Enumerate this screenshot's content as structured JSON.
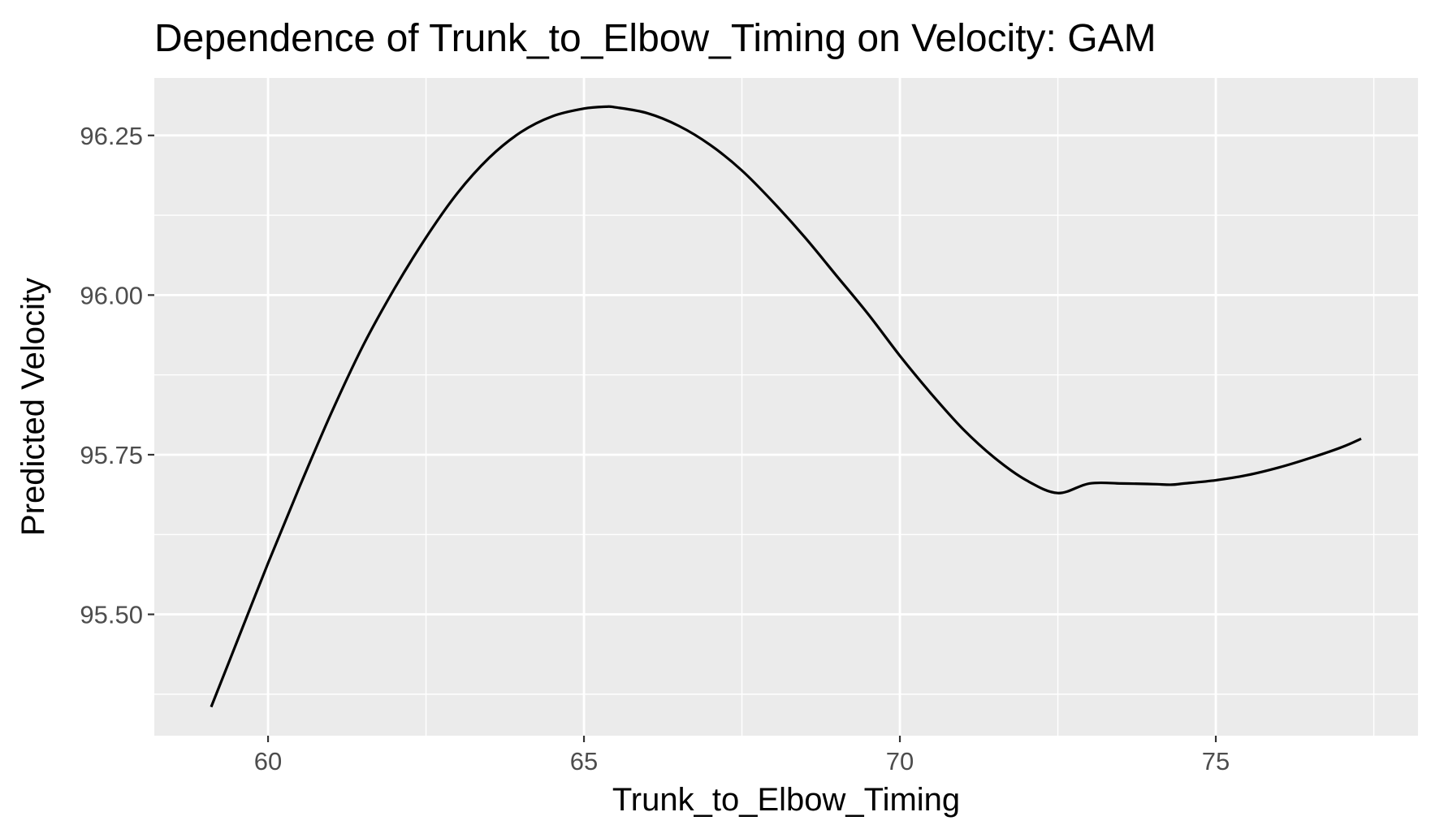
{
  "chart_data": {
    "type": "line",
    "title": "Dependence of Trunk_to_Elbow_Timing on Velocity: GAM",
    "xlabel": "Trunk_to_Elbow_Timing",
    "ylabel": "Predicted Velocity",
    "xlim": [
      58.2,
      78.2
    ],
    "ylim": [
      95.31,
      96.34
    ],
    "x_ticks": [
      60,
      65,
      70,
      75
    ],
    "x_tick_labels": [
      "60",
      "65",
      "70",
      "75"
    ],
    "y_ticks": [
      95.5,
      95.75,
      96.0,
      96.25
    ],
    "y_tick_labels": [
      "95.50",
      "95.75",
      "96.00",
      "96.25"
    ],
    "grid": true,
    "legend": "none",
    "colors": {
      "panel": "#ebebeb",
      "grid": "#ffffff",
      "line": "#000000",
      "ticks": "#333333"
    },
    "series": [
      {
        "x": [
          59.1,
          59.5,
          60.0,
          60.5,
          61.0,
          61.5,
          62.0,
          62.5,
          63.0,
          63.5,
          64.0,
          64.5,
          65.0,
          65.35,
          65.5,
          66.0,
          66.5,
          67.0,
          67.5,
          68.0,
          68.5,
          69.0,
          69.5,
          70.0,
          70.5,
          71.0,
          71.5,
          72.0,
          72.5,
          73.0,
          73.5,
          74.0,
          74.3,
          74.5,
          75.0,
          75.5,
          76.0,
          76.5,
          77.0,
          77.3
        ],
        "y": [
          95.355,
          95.455,
          95.58,
          95.7,
          95.815,
          95.92,
          96.01,
          96.09,
          96.16,
          96.215,
          96.255,
          96.28,
          96.292,
          96.295,
          96.294,
          96.285,
          96.265,
          96.235,
          96.195,
          96.145,
          96.09,
          96.03,
          95.97,
          95.905,
          95.845,
          95.79,
          95.745,
          95.71,
          95.69,
          95.705,
          95.705,
          95.704,
          95.703,
          95.705,
          95.71,
          95.718,
          95.73,
          95.745,
          95.762,
          95.775
        ]
      }
    ]
  }
}
